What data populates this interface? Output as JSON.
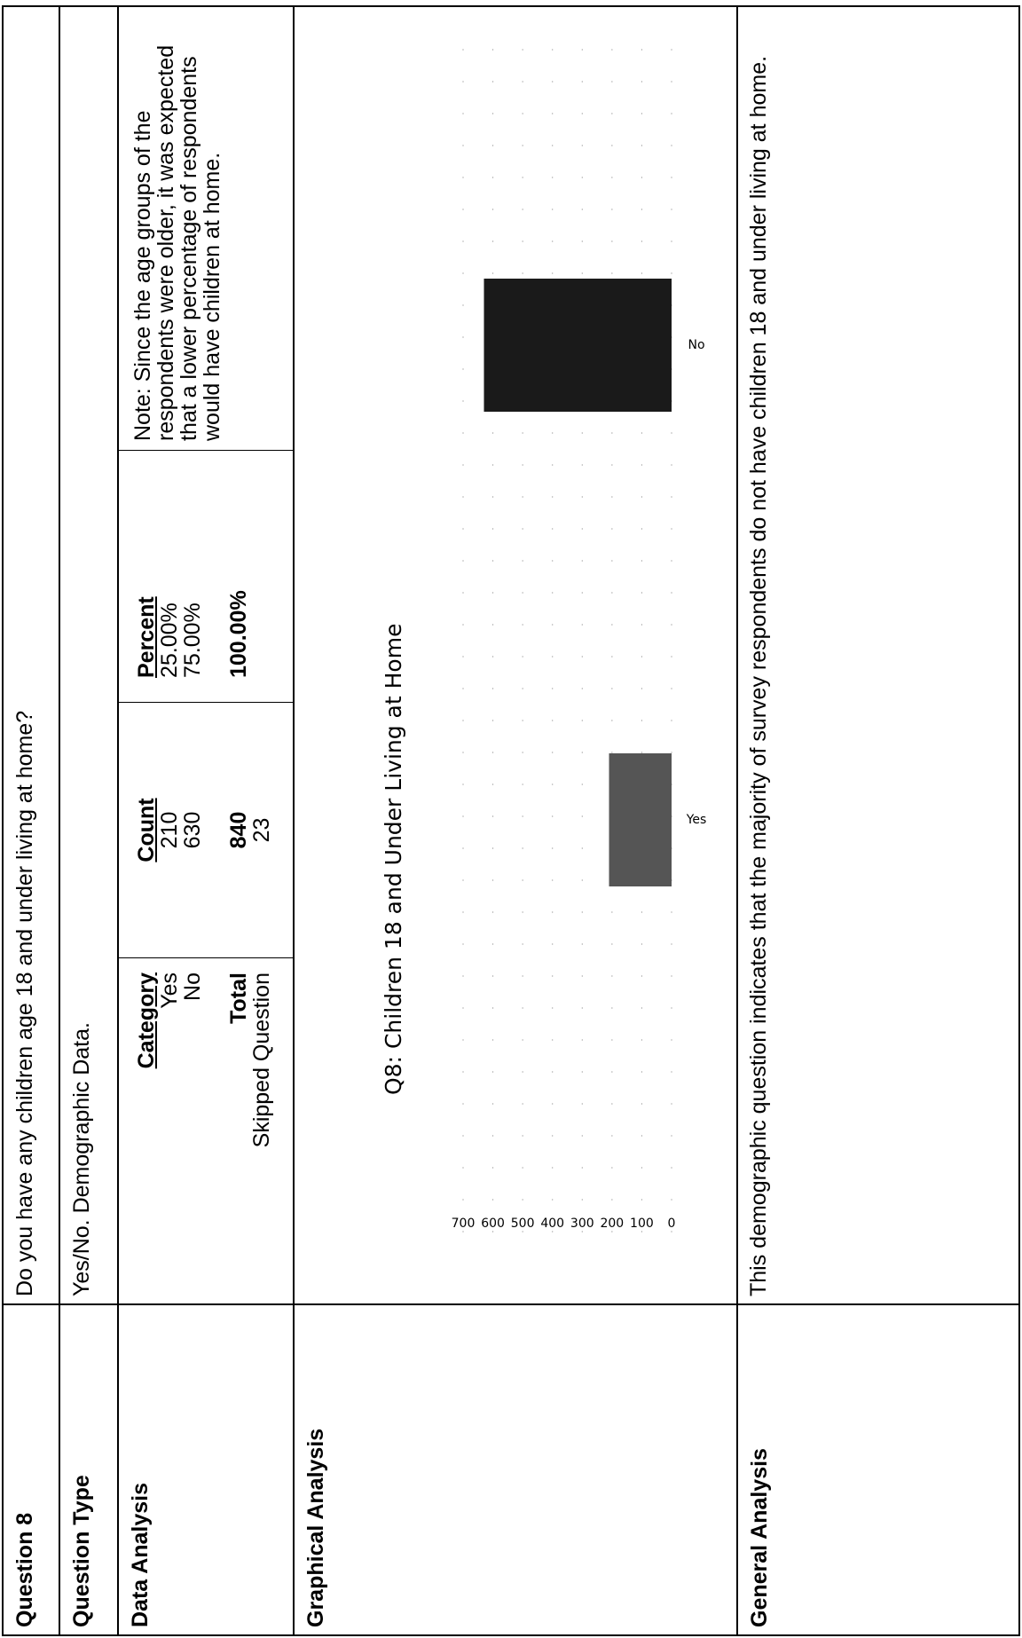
{
  "rows": {
    "question": {
      "label": "Question 8",
      "text": "Do you have any children age 18 and under living at home?"
    },
    "type": {
      "label": "Question Type",
      "text": "Yes/No.  Demographic Data."
    },
    "data": {
      "label": "Data Analysis",
      "headers": {
        "category": "Category",
        "count": "Count",
        "percent": "Percent"
      },
      "items": [
        {
          "category": "Yes",
          "count": "210",
          "percent": "25.00%"
        },
        {
          "category": "No",
          "count": "630",
          "percent": "75.00%"
        }
      ],
      "total": {
        "category": "Total",
        "count": "840",
        "percent": "100.00%"
      },
      "skipped": {
        "category": "Skipped Question",
        "count": "23"
      },
      "note": "Note:  Since the age groups of the respondents were older, it was expected that a lower percentage of respondents would have children at home."
    },
    "graph": {
      "label": "Graphical Analysis"
    },
    "general": {
      "label": "General Analysis",
      "text": "This demographic question indicates that the majority of survey respondents do not have children 18 and under living at home."
    }
  },
  "chart_data": {
    "type": "bar",
    "title": "Q8:  Children 18 and Under Living at Home",
    "categories": [
      "Yes",
      "No"
    ],
    "values": [
      210,
      630
    ],
    "ylim": [
      0,
      700
    ],
    "yticks": [
      "0",
      "100",
      "200",
      "300",
      "400",
      "500",
      "600",
      "700"
    ],
    "grid": true,
    "colors": [
      "#555555",
      "#1a1a1a"
    ]
  }
}
